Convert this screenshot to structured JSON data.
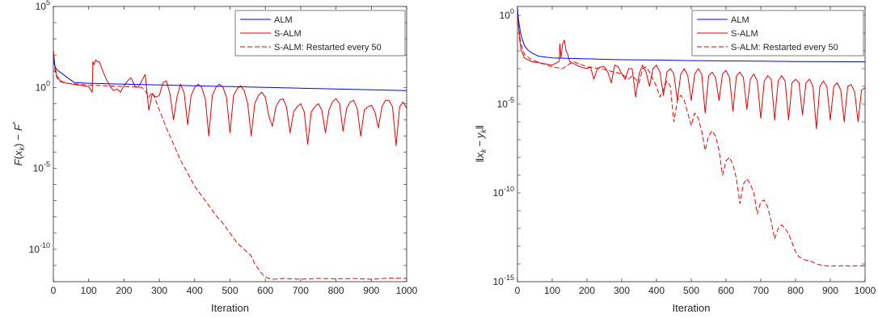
{
  "chart_data": [
    {
      "type": "line",
      "xlabel": "Iteration",
      "ylabel": "F(x_k) − F*",
      "ylabel_parts": {
        "F": "F",
        "open": "(",
        "x": "x",
        "k": "k",
        "close": ")",
        "minus": "−",
        "Fstar": "F",
        "star": "*"
      },
      "yscale": "log",
      "xlim": [
        0,
        1000
      ],
      "ylim_exp": [
        -12,
        5
      ],
      "xticks": [
        0,
        100,
        200,
        300,
        400,
        500,
        600,
        700,
        800,
        900,
        1000
      ],
      "xtick_labels": [
        "0",
        "100",
        "200",
        "300",
        "400",
        "500",
        "600",
        "700",
        "800",
        "900",
        "1000"
      ],
      "yticks_exp": [
        -10,
        -5,
        0,
        5
      ],
      "ytick_labels": [
        {
          "base": "10",
          "exp": "-10"
        },
        {
          "base": "10",
          "exp": "-5"
        },
        {
          "base": "10",
          "exp": "0"
        },
        {
          "base": "10",
          "exp": "5"
        }
      ],
      "legend": {
        "position": "top-right",
        "entries": [
          "ALM",
          "S-ALM",
          "S-ALM: Restarted every 50"
        ]
      },
      "series": [
        {
          "name": "ALM",
          "color": "#0000ff",
          "style": "solid",
          "x": [
            0,
            3,
            8,
            15,
            25,
            40,
            60,
            80,
            100,
            200,
            300,
            400,
            500,
            600,
            700,
            800,
            900,
            1000
          ],
          "log10_y": [
            1.9,
            1.4,
            1.15,
            1.0,
            0.85,
            0.6,
            0.3,
            0.28,
            0.26,
            0.2,
            0.15,
            0.1,
            0.05,
            0.0,
            -0.05,
            -0.1,
            -0.15,
            -0.2
          ],
          "log10_y_samples": []
        },
        {
          "name": "S-ALM",
          "color": "#e60000",
          "style": "solid",
          "x": [
            0,
            5,
            10,
            20,
            40,
            70,
            100,
            110,
            112,
            115,
            120,
            125,
            130,
            140,
            150,
            160,
            170,
            180,
            190,
            200,
            210,
            220,
            230,
            240,
            250,
            260,
            270,
            280,
            290,
            300,
            310,
            320,
            330,
            340,
            350,
            360,
            370,
            380,
            390,
            400,
            410,
            420,
            430,
            440,
            450,
            460,
            470,
            480,
            490,
            500,
            510,
            520,
            530,
            540,
            550,
            560,
            570,
            580,
            590,
            600,
            610,
            620,
            630,
            640,
            650,
            660,
            670,
            680,
            690,
            700,
            710,
            720,
            730,
            740,
            750,
            760,
            770,
            780,
            790,
            800,
            810,
            820,
            830,
            840,
            850,
            860,
            870,
            880,
            890,
            900,
            910,
            920,
            930,
            940,
            950,
            960,
            970,
            980,
            990,
            1000
          ],
          "log10_y": [
            2.3,
            1.2,
            0.7,
            0.4,
            0.25,
            0.15,
            0.05,
            -0.3,
            1.6,
            1.4,
            1.7,
            1.6,
            1.6,
            1.0,
            0.5,
            0.1,
            -0.2,
            -0.1,
            -0.3,
            0.1,
            0.4,
            0.6,
            0.1,
            0.0,
            0.4,
            0.8,
            -1.4,
            -0.4,
            -0.6,
            -0.5,
            0.3,
            0.4,
            -0.4,
            -2.0,
            -0.6,
            0.2,
            -0.3,
            -2.3,
            -0.5,
            0.0,
            0.2,
            0.0,
            -0.7,
            -3.0,
            -0.5,
            0.0,
            0.2,
            0.0,
            -0.6,
            -2.8,
            -0.5,
            -0.1,
            0.1,
            -0.2,
            -1.0,
            -3.0,
            -1.0,
            -0.5,
            -0.3,
            -0.6,
            -1.8,
            -2.4,
            -1.2,
            -0.8,
            -0.7,
            -1.2,
            -2.8,
            -1.5,
            -1.2,
            -1.0,
            -1.5,
            -3.5,
            -1.5,
            -1.2,
            -1.0,
            -1.4,
            -2.8,
            -1.4,
            -0.9,
            -0.7,
            -1.0,
            -2.7,
            -1.3,
            -0.9,
            -0.8,
            -1.3,
            -3.0,
            -1.4,
            -1.2,
            -1.1,
            -1.5,
            -2.5,
            -1.2,
            -0.8,
            -0.8,
            -1.2,
            -3.6,
            -1.2,
            -0.9,
            -1.3
          ],
          "log10_y_samples": []
        },
        {
          "name": "S-ALM: Restarted every 50",
          "color": "#e60000",
          "style": "dashed",
          "x": [
            0,
            5,
            10,
            20,
            40,
            70,
            100,
            150,
            200,
            250,
            260,
            270,
            280,
            290,
            300,
            320,
            340,
            360,
            380,
            400,
            420,
            440,
            460,
            480,
            500,
            520,
            540,
            560,
            570,
            580,
            590,
            600,
            610,
            620,
            650,
            700,
            750,
            800,
            850,
            900,
            950,
            1000
          ],
          "log10_y": [
            2.1,
            1.0,
            0.6,
            0.35,
            0.25,
            0.2,
            0.15,
            0.1,
            0.05,
            0.0,
            -0.2,
            -0.6,
            -0.3,
            -0.8,
            -1.4,
            -2.5,
            -3.5,
            -4.5,
            -5.3,
            -6.1,
            -6.7,
            -7.3,
            -7.9,
            -8.4,
            -9.0,
            -9.6,
            -10.0,
            -10.4,
            -10.9,
            -11.2,
            -11.5,
            -11.7,
            -11.8,
            -11.85,
            -11.8,
            -11.85,
            -11.8,
            -11.82,
            -11.8,
            -11.85,
            -11.78,
            -11.8
          ],
          "log10_y_samples": []
        }
      ]
    },
    {
      "type": "line",
      "xlabel": "Iteration",
      "ylabel": "‖x_k − y_k‖",
      "ylabel_parts": {
        "bars_open": "‖",
        "x": "x",
        "k1": "k",
        "minus": "−",
        "y": "y",
        "k2": "k",
        "bars_close": "‖"
      },
      "yscale": "log",
      "xlim": [
        0,
        1000
      ],
      "ylim_exp": [
        -15,
        0.5
      ],
      "xticks": [
        0,
        100,
        200,
        300,
        400,
        500,
        600,
        700,
        800,
        900,
        1000
      ],
      "xtick_labels": [
        "0",
        "100",
        "200",
        "300",
        "400",
        "500",
        "600",
        "700",
        "800",
        "900",
        "1000"
      ],
      "yticks_exp": [
        -15,
        -10,
        -5,
        0
      ],
      "ytick_labels": [
        {
          "base": "10",
          "exp": "-15"
        },
        {
          "base": "10",
          "exp": "-10"
        },
        {
          "base": "10",
          "exp": "-5"
        },
        {
          "base": "10",
          "exp": "0"
        }
      ],
      "legend": {
        "position": "top-right",
        "entries": [
          "ALM",
          "S-ALM",
          "S-ALM: Restarted every 50"
        ]
      },
      "series": [
        {
          "name": "ALM",
          "color": "#0000ff",
          "style": "solid",
          "x": [
            0,
            2,
            5,
            10,
            20,
            30,
            40,
            60,
            100,
            200,
            300,
            400,
            500,
            600,
            700,
            800,
            900,
            1000
          ],
          "log10_y": [
            0.4,
            -0.1,
            -0.5,
            -1.1,
            -1.7,
            -1.95,
            -2.1,
            -2.3,
            -2.4,
            -2.45,
            -2.5,
            -2.52,
            -2.55,
            -2.57,
            -2.58,
            -2.6,
            -2.61,
            -2.62
          ],
          "log10_y_samples": []
        },
        {
          "name": "S-ALM",
          "color": "#e60000",
          "style": "solid",
          "x": [
            0,
            3,
            6,
            10,
            20,
            40,
            70,
            100,
            120,
            122,
            125,
            130,
            135,
            140,
            145,
            150,
            160,
            180,
            200,
            210,
            220,
            230,
            240,
            250,
            260,
            270,
            280,
            290,
            300,
            310,
            320,
            330,
            340,
            350,
            360,
            370,
            380,
            390,
            400,
            410,
            420,
            430,
            440,
            450,
            460,
            470,
            480,
            490,
            500,
            510,
            520,
            530,
            540,
            550,
            560,
            570,
            580,
            590,
            600,
            610,
            620,
            630,
            640,
            650,
            660,
            670,
            680,
            690,
            700,
            710,
            720,
            730,
            740,
            750,
            760,
            770,
            780,
            790,
            800,
            810,
            820,
            830,
            840,
            850,
            860,
            870,
            880,
            890,
            900,
            910,
            920,
            930,
            940,
            950,
            960,
            970,
            980,
            990,
            1000
          ],
          "log10_y": [
            0.5,
            -0.6,
            -1.3,
            -1.9,
            -2.4,
            -2.6,
            -2.7,
            -2.8,
            -2.6,
            -1.6,
            -2.4,
            -1.6,
            -1.4,
            -2.0,
            -2.2,
            -2.6,
            -2.7,
            -2.9,
            -3.0,
            -2.9,
            -3.6,
            -3.0,
            -2.9,
            -2.9,
            -3.2,
            -3.8,
            -2.8,
            -2.9,
            -3.3,
            -3.6,
            -3.0,
            -3.0,
            -4.6,
            -3.3,
            -2.8,
            -3.2,
            -4.0,
            -3.0,
            -2.8,
            -3.2,
            -4.5,
            -3.2,
            -3.0,
            -3.3,
            -4.8,
            -3.3,
            -3.0,
            -3.4,
            -4.8,
            -3.3,
            -3.0,
            -3.3,
            -5.5,
            -3.4,
            -3.2,
            -3.5,
            -4.8,
            -3.3,
            -3.1,
            -3.5,
            -5.4,
            -3.4,
            -3.2,
            -3.5,
            -5.3,
            -3.6,
            -3.3,
            -3.7,
            -5.8,
            -3.7,
            -3.4,
            -3.6,
            -5.9,
            -3.7,
            -3.4,
            -3.7,
            -5.9,
            -3.8,
            -3.6,
            -3.8,
            -5.6,
            -3.8,
            -3.6,
            -4.0,
            -6.4,
            -4.0,
            -3.7,
            -4.0,
            -5.9,
            -4.0,
            -3.8,
            -4.2,
            -6.0,
            -4.0,
            -3.9,
            -4.3,
            -6.0,
            -4.2,
            -4.1
          ],
          "log10_y_samples": []
        },
        {
          "name": "S-ALM: Restarted every 50",
          "color": "#e60000",
          "style": "dashed",
          "x": [
            0,
            3,
            6,
            10,
            20,
            40,
            70,
            100,
            130,
            160,
            200,
            240,
            280,
            300,
            320,
            330,
            340,
            350,
            360,
            370,
            380,
            390,
            400,
            410,
            420,
            430,
            440,
            450,
            460,
            470,
            480,
            490,
            500,
            510,
            520,
            530,
            540,
            550,
            560,
            570,
            580,
            590,
            600,
            610,
            620,
            630,
            640,
            650,
            660,
            670,
            680,
            690,
            700,
            710,
            720,
            730,
            740,
            750,
            760,
            770,
            780,
            790,
            800,
            810,
            820,
            830,
            840,
            850,
            860,
            870,
            880,
            890,
            900,
            910,
            920,
            930,
            940,
            950,
            960,
            970,
            980,
            990,
            1000
          ],
          "log10_y": [
            0.4,
            -0.5,
            -1.1,
            -1.6,
            -2.2,
            -2.5,
            -2.7,
            -2.9,
            -3.0,
            -2.6,
            -2.9,
            -3.0,
            -3.2,
            -3.3,
            -3.6,
            -3.4,
            -3.6,
            -3.8,
            -3.0,
            -2.9,
            -3.2,
            -3.6,
            -4.0,
            -4.6,
            -4.2,
            -3.7,
            -4.0,
            -6.0,
            -4.8,
            -4.5,
            -4.8,
            -5.5,
            -6.2,
            -5.5,
            -5.8,
            -6.5,
            -7.6,
            -6.8,
            -6.5,
            -6.8,
            -7.6,
            -9.0,
            -8.2,
            -8.0,
            -8.4,
            -9.2,
            -10.6,
            -9.5,
            -9.2,
            -9.5,
            -10.0,
            -11.2,
            -10.5,
            -10.4,
            -10.8,
            -11.6,
            -12.6,
            -12.0,
            -11.8,
            -12.0,
            -12.3,
            -12.8,
            -13.3,
            -13.6,
            -13.7,
            -13.8,
            -13.8,
            -13.9,
            -14.0,
            -14.05,
            -14.1,
            -14.1,
            -14.15,
            -14.1,
            -14.15,
            -14.1,
            -14.12,
            -14.1,
            -14.15,
            -14.1,
            -14.12,
            -14.1,
            -14.1
          ],
          "log10_y_samples": []
        }
      ]
    }
  ]
}
